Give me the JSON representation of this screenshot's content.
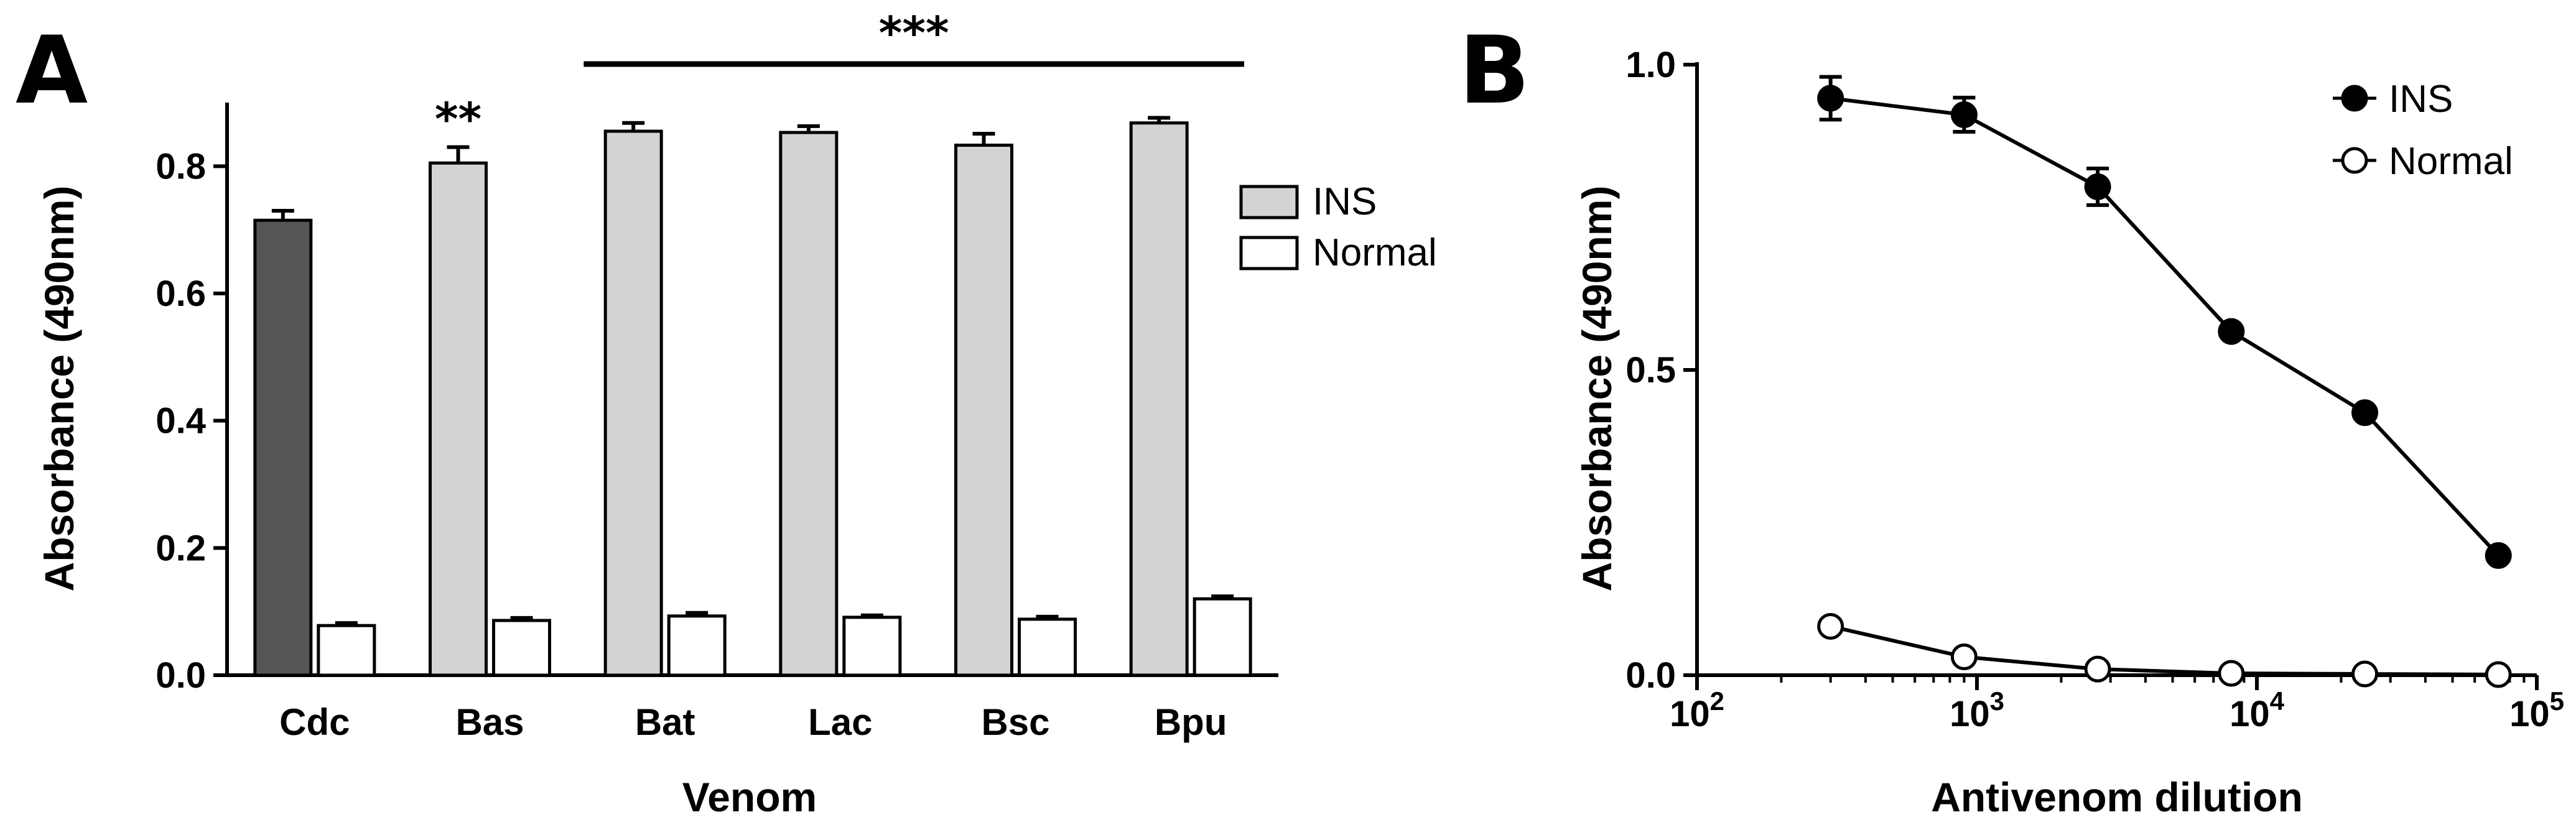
{
  "chart_data": [
    {
      "panel": "A",
      "type": "bar",
      "xlabel": "Venom",
      "ylabel": "Absorbance (490nm)",
      "ylim": [
        0,
        0.9
      ],
      "yticks": [
        "0.0",
        "0.2",
        "0.4",
        "0.6",
        "0.8"
      ],
      "categories": [
        "Cdc",
        "Bas",
        "Bat",
        "Lac",
        "Bsc",
        "Bpu"
      ],
      "series": [
        {
          "name": "INS",
          "values": [
            0.715,
            0.805,
            0.855,
            0.853,
            0.833,
            0.868
          ],
          "errors": [
            0.015,
            0.025,
            0.013,
            0.01,
            0.018,
            0.008
          ]
        },
        {
          "name": "Normal",
          "values": [
            0.078,
            0.086,
            0.093,
            0.091,
            0.088,
            0.12
          ],
          "errors": [
            0.004,
            0.004,
            0.005,
            0.003,
            0.004,
            0.004
          ]
        }
      ],
      "bar_colors": [
        "#555555",
        "#d3d3d3",
        "#d3d3d3",
        "#d3d3d3",
        "#d3d3d3",
        "#d3d3d3"
      ],
      "normal_color": "#ffffff",
      "legend": [
        "INS",
        "Normal"
      ],
      "legend_colors": [
        "#d3d3d3",
        "#ffffff"
      ],
      "annotations": [
        {
          "text": "**",
          "category": "Bas"
        },
        {
          "text": "***",
          "from": "Bat",
          "to": "Bpu"
        }
      ]
    },
    {
      "panel": "B",
      "type": "line",
      "xlabel": "Antivenom dilution",
      "ylabel": "Absorbance (490nm)",
      "xscale": "log",
      "xlim": [
        100,
        100000
      ],
      "ylim": [
        0,
        1.0
      ],
      "yticks": [
        "0.0",
        "0.5",
        "1.0"
      ],
      "xtick_base": "10",
      "xtick_exponents": [
        "2",
        "3",
        "4",
        "5"
      ],
      "x": [
        300,
        900,
        2700,
        8100,
        24300,
        72900
      ],
      "series": [
        {
          "name": "INS",
          "values": [
            0.945,
            0.918,
            0.8,
            0.563,
            0.43,
            0.196
          ],
          "errors": [
            0.035,
            0.028,
            0.03,
            0.006,
            0.006,
            0.006
          ],
          "marker": "filled"
        },
        {
          "name": "Normal",
          "values": [
            0.08,
            0.03,
            0.01,
            0.003,
            0.002,
            0.001
          ],
          "errors": [
            0,
            0,
            0,
            0,
            0,
            0
          ],
          "marker": "open"
        }
      ],
      "legend": [
        "INS",
        "Normal"
      ]
    }
  ]
}
